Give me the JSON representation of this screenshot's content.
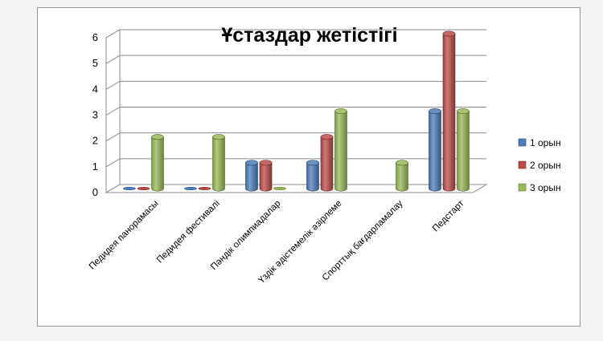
{
  "chart_data": {
    "type": "bar",
    "title": "Ұстаздар жетістігі",
    "xlabel": "",
    "ylabel": "",
    "ylim": [
      0,
      6
    ],
    "yticks": [
      "0",
      "1",
      "2",
      "3",
      "4",
      "5",
      "6"
    ],
    "grid": true,
    "legend_position": "right",
    "categories": [
      "Педидея  панорамасы",
      "Педидея фестивалі",
      "Пәндік олимпиадалар",
      "Үздік  әдістемелік әзірлеме",
      "Спорттық  бағдарламалау",
      "Педстарт"
    ],
    "series": [
      {
        "name": "1 орын",
        "color": "#4a7ebb",
        "values": [
          0,
          0,
          1,
          1,
          null,
          3
        ]
      },
      {
        "name": "2 орын",
        "color": "#be4b48",
        "values": [
          0,
          0,
          1,
          2,
          null,
          6
        ]
      },
      {
        "name": "3 орын",
        "color": "#98b954",
        "values": [
          2,
          2,
          0,
          3,
          1,
          3
        ]
      }
    ]
  }
}
